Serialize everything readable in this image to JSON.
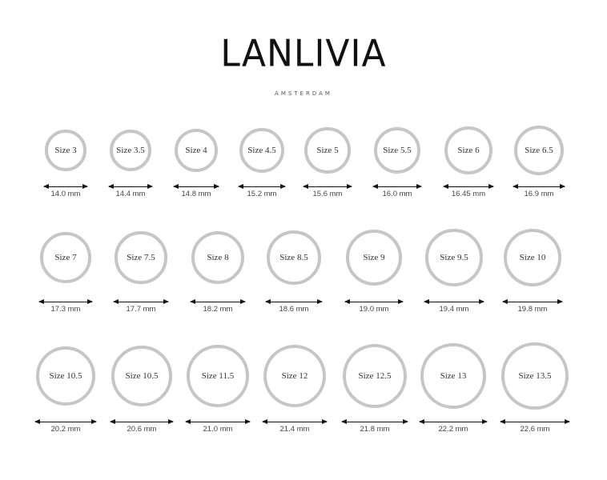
{
  "brand": {
    "name": "LANLIVIA",
    "location": "AMSTERDAM"
  },
  "rows": [
    [
      {
        "size": "Size 3",
        "diameter": "14.0 mm"
      },
      {
        "size": "Size 3.5",
        "diameter": "14.4 mm"
      },
      {
        "size": "Size 4",
        "diameter": "14.8 mm"
      },
      {
        "size": "Size 4.5",
        "diameter": "15.2 mm"
      },
      {
        "size": "Size 5",
        "diameter": "15.6 mm"
      },
      {
        "size": "Size 5.5",
        "diameter": "16.0 mm"
      },
      {
        "size": "Size 6",
        "diameter": "16.45 mm"
      },
      {
        "size": "Size 6.5",
        "diameter": "16.9 mm"
      }
    ],
    [
      {
        "size": "Size 7",
        "diameter": "17.3 mm"
      },
      {
        "size": "Size 7.5",
        "diameter": "17.7 mm"
      },
      {
        "size": "Size 8",
        "diameter": "18.2 mm"
      },
      {
        "size": "Size 8.5",
        "diameter": "18.6 mm"
      },
      {
        "size": "Size 9",
        "diameter": "19.0 mm"
      },
      {
        "size": "Size 9.5",
        "diameter": "19.4 mm"
      },
      {
        "size": "Size 10",
        "diameter": "19.8 mm"
      }
    ],
    [
      {
        "size": "Size 10.5",
        "diameter": "20.2 mm"
      },
      {
        "size": "Size 10.5",
        "diameter": "20.6 mm"
      },
      {
        "size": "Size 11.5",
        "diameter": "21.0 mm"
      },
      {
        "size": "Size 12",
        "diameter": "21.4 mm"
      },
      {
        "size": "Size 12.5",
        "diameter": "21.8 mm"
      },
      {
        "size": "Size 13",
        "diameter": "22.2 mm"
      },
      {
        "size": "Size 13.5",
        "diameter": "22.6 mm"
      }
    ]
  ],
  "colors": {
    "ring": "#c6c6c6",
    "text": "#333333"
  }
}
